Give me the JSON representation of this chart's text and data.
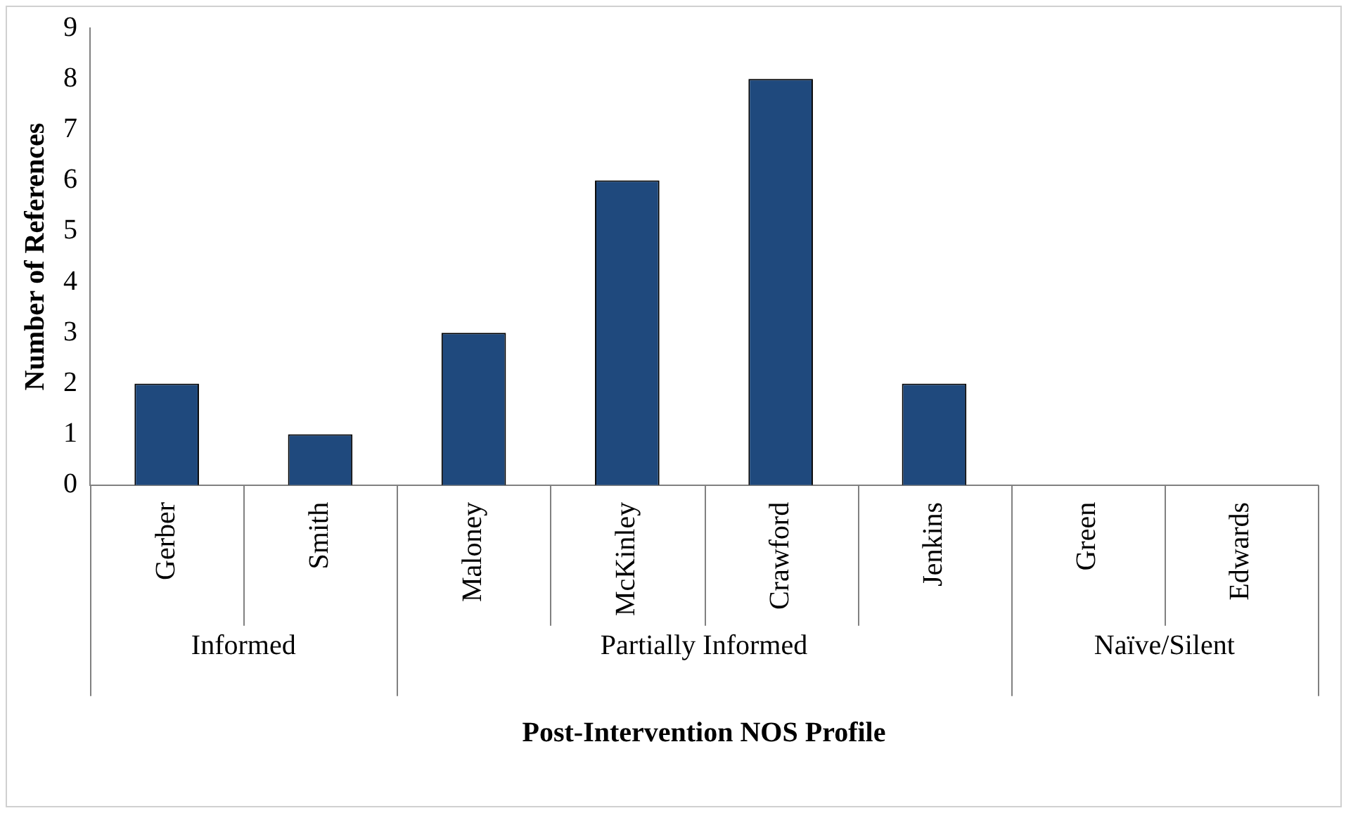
{
  "chart_data": {
    "type": "bar",
    "xlabel": "Post-Intervention NOS Profile",
    "ylabel": "Number of References",
    "categories": [
      "Gerber",
      "Smith",
      "Maloney",
      "McKinley",
      "Crawford",
      "Jenkins",
      "Green",
      "Edwards"
    ],
    "values": [
      2,
      1,
      3,
      6,
      8,
      2,
      0,
      0
    ],
    "color": "#1f497d",
    "ylim": [
      0,
      9
    ],
    "yticks": [
      0,
      1,
      2,
      3,
      4,
      5,
      6,
      7,
      8,
      9
    ],
    "grid": false,
    "annotations": [
      "Informed",
      "Partially Informed",
      "Naïve/Silent"
    ]
  }
}
